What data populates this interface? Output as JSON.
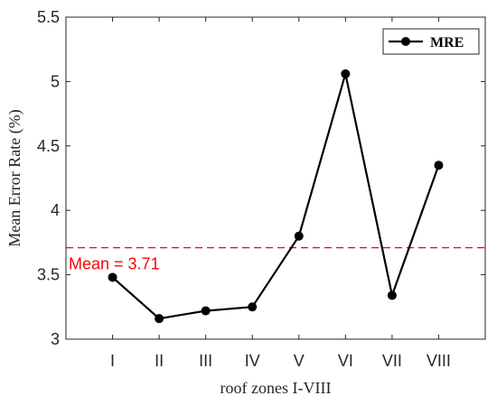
{
  "chart_data": {
    "type": "line",
    "title": "",
    "xlabel": "roof zones I-VIII",
    "ylabel": "Mean Error Rate (%)",
    "categories": [
      "I",
      "II",
      "III",
      "IV",
      "V",
      "VI",
      "VII",
      "VIII"
    ],
    "series": [
      {
        "name": "MRE",
        "values": [
          3.48,
          3.16,
          3.22,
          3.25,
          3.8,
          5.06,
          3.34,
          4.35
        ],
        "color": "#000000",
        "marker": "circle"
      }
    ],
    "ylim": [
      3,
      5.5
    ],
    "yticks": [
      "3",
      "3.5",
      "4",
      "4.5",
      "5",
      "5.5"
    ],
    "yticks_values": [
      3,
      3.5,
      4,
      4.5,
      5,
      5.5
    ],
    "reference_line": {
      "value": 3.71,
      "label": "Mean = 3.71",
      "color": "#ff0000",
      "style": "dashed"
    },
    "legend_position": "top-right",
    "grid": false
  }
}
